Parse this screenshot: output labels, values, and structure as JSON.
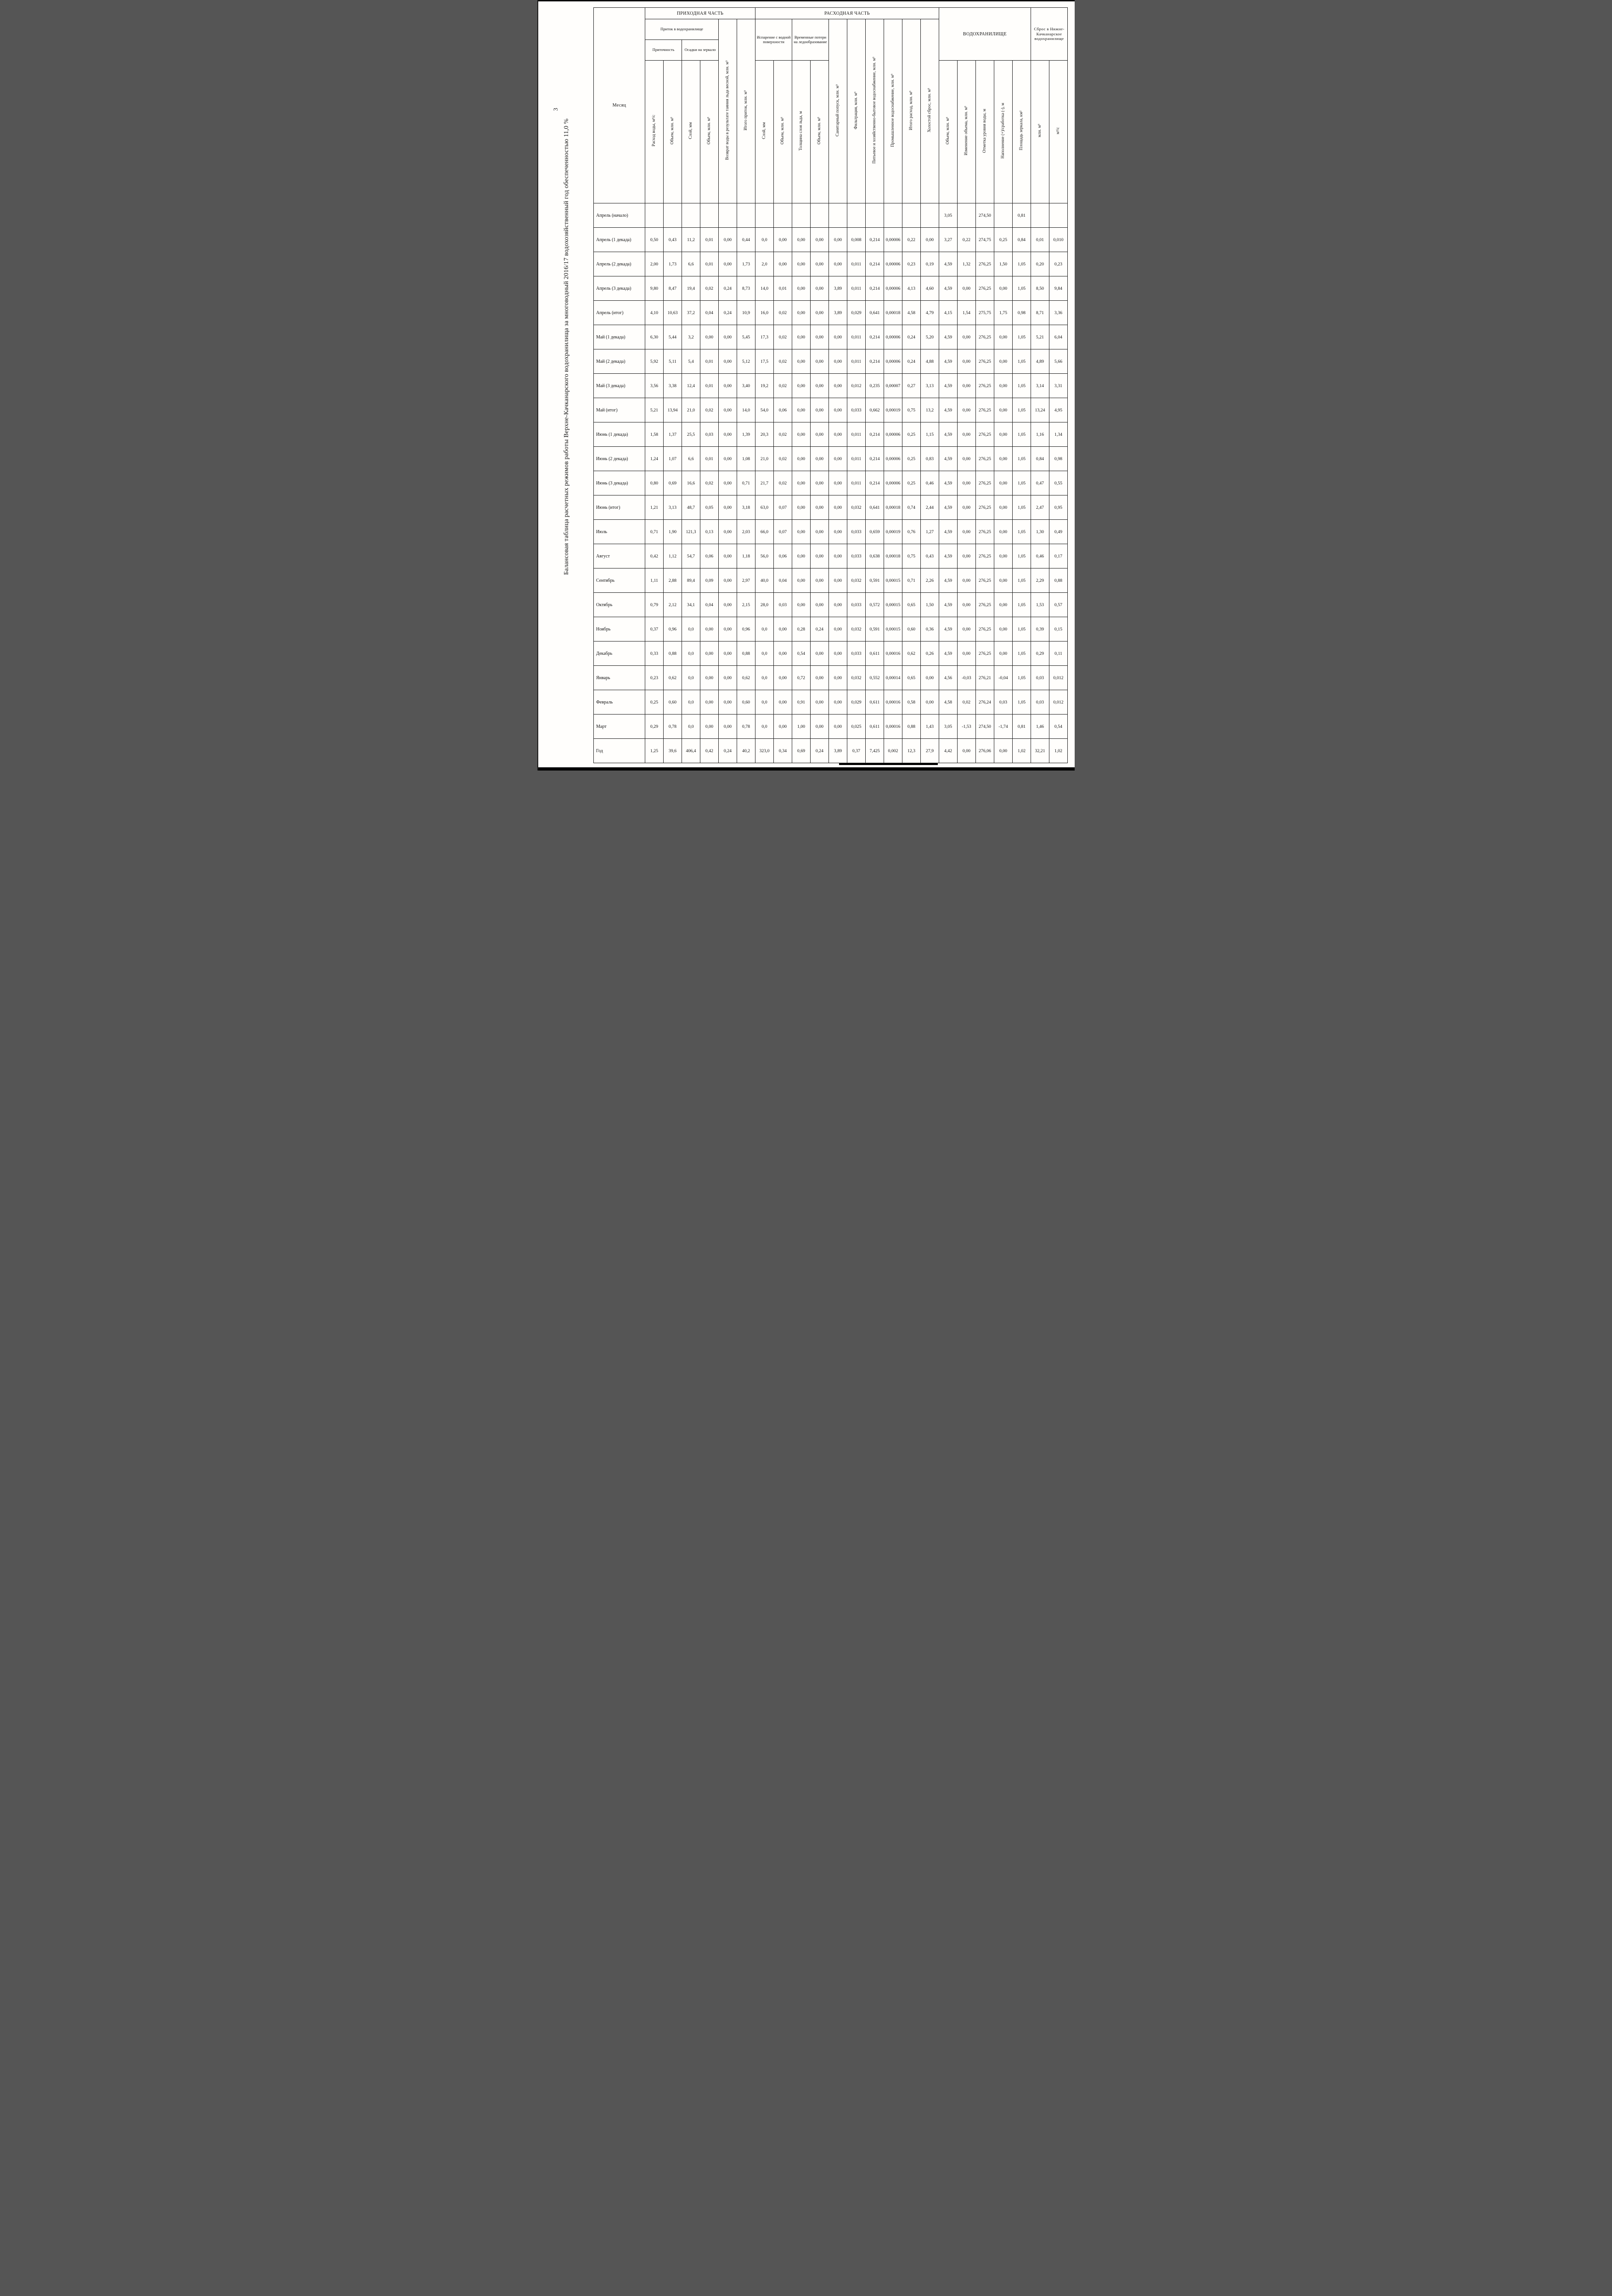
{
  "page": {
    "number": "3",
    "title": "Балансовая таблица расчетных режимов работы Верхне-Качканарского водохранилища за многоводный 2016/17 водохозяйственный год обеспеченностью 11,0 %"
  },
  "table": {
    "month_col_header": "Месяц",
    "groups": {
      "prihod": "ПРИХОДНАЯ ЧАСТЬ",
      "rashod": "РАСХОДНАЯ ЧАСТЬ",
      "vdhr": "ВОДОХРАНИЛИЩЕ",
      "sbros": "Сброс в Нижне-Качканарское водохранилище",
      "pritok_v": "Приток в водохранилище",
      "pritochnost": "Приточность",
      "osadki": "Осадки на зеркало",
      "isparenie": "Испарение с водной поверхности",
      "led": "Временные потери на ледообразование"
    },
    "leaf_headers": {
      "prit_rashod": "Расход воды, м³/с",
      "prit_obem": "Объем, млн. м³",
      "osadki_sloy": "Слой, мм",
      "osadki_obem": "Объем, млн. м³",
      "vozvrat": "Возврат воды в результате таяния льда весной, млн. м³",
      "itogo_pritok": "Итого приток, млн. м³",
      "isp_sloy": "Слой, мм",
      "isp_obem": "Объем, млн. м³",
      "led_tolsch": "Толщина слоя льда, м",
      "led_obem": "Объем, млн. м³",
      "sanitarny": "Санитарный попуск, млн. м³",
      "filtracia": "Фильтрация, млн. м³",
      "pitevoe": "Питьевое и хозяйственно-бытовое водоснабжение, млн. м³",
      "prom": "Промышленное водоснабжение, млн. м³",
      "itogo_rashod": "Итого расход, млн. м³",
      "kholostoy": "Холостой сброс, млн. м³",
      "obem_vdhr": "Объем, млн. м³",
      "izmenenie": "Изменение объема, млн. м³",
      "otmetka": "Отметка уровня воды, м",
      "napolnenie": "Наполнение (+)/сработка (-), м",
      "ploschad": "Площадь зеркала, км²",
      "sbros_mln": "млн. м³",
      "sbros_m3s": "м³/с"
    },
    "months": [
      "Апрель (начало)",
      "Апрель (1 декада)",
      "Апрель (2 декада)",
      "Апрель (3 декада)",
      "Апрель (итог)",
      "Май (1 декада)",
      "Май (2 декада)",
      "Май (3 декада)",
      "Май (итог)",
      "Июнь (1 декада)",
      "Июнь (2 декада)",
      "Июнь (3 декада)",
      "Июнь (итог)",
      "Июль",
      "Август",
      "Сентябрь",
      "Октябрь",
      "Ноябрь",
      "Декабрь",
      "Январь",
      "Февраль",
      "Март",
      "Год"
    ],
    "rows": [
      [
        "",
        "",
        "",
        "",
        "",
        "",
        "",
        "",
        "",
        "",
        "",
        "",
        "",
        "",
        "",
        "",
        "3,05",
        "",
        "274,50",
        "",
        "0,81",
        "",
        ""
      ],
      [
        "0,50",
        "0,43",
        "11,2",
        "0,01",
        "0,00",
        "0,44",
        "0,0",
        "0,00",
        "0,00",
        "0,00",
        "0,00",
        "0,008",
        "0,214",
        "0,00006",
        "0,22",
        "0,00",
        "3,27",
        "0,22",
        "274,75",
        "0,25",
        "0,84",
        "0,01",
        "0,010"
      ],
      [
        "2,00",
        "1,73",
        "6,6",
        "0,01",
        "0,00",
        "1,73",
        "2,0",
        "0,00",
        "0,00",
        "0,00",
        "0,00",
        "0,011",
        "0,214",
        "0,00006",
        "0,23",
        "0,19",
        "4,59",
        "1,32",
        "276,25",
        "1,50",
        "1,05",
        "0,20",
        "0,23"
      ],
      [
        "9,80",
        "8,47",
        "19,4",
        "0,02",
        "0,24",
        "8,73",
        "14,0",
        "0,01",
        "0,00",
        "0,00",
        "3,89",
        "0,011",
        "0,214",
        "0,00006",
        "4,13",
        "4,60",
        "4,59",
        "0,00",
        "276,25",
        "0,00",
        "1,05",
        "8,50",
        "9,84"
      ],
      [
        "4,10",
        "10,63",
        "37,2",
        "0,04",
        "0,24",
        "10,9",
        "16,0",
        "0,02",
        "0,00",
        "0,00",
        "3,89",
        "0,029",
        "0,641",
        "0,00018",
        "4,58",
        "4,79",
        "4,15",
        "1,54",
        "275,75",
        "1,75",
        "0,98",
        "8,71",
        "3,36"
      ],
      [
        "6,30",
        "5,44",
        "3,2",
        "0,00",
        "0,00",
        "5,45",
        "17,3",
        "0,02",
        "0,00",
        "0,00",
        "0,00",
        "0,011",
        "0,214",
        "0,00006",
        "0,24",
        "5,20",
        "4,59",
        "0,00",
        "276,25",
        "0,00",
        "1,05",
        "5,21",
        "6,04"
      ],
      [
        "5,92",
        "5,11",
        "5,4",
        "0,01",
        "0,00",
        "5,12",
        "17,5",
        "0,02",
        "0,00",
        "0,00",
        "0,00",
        "0,011",
        "0,214",
        "0,00006",
        "0,24",
        "4,88",
        "4,59",
        "0,00",
        "276,25",
        "0,00",
        "1,05",
        "4,89",
        "5,66"
      ],
      [
        "3,56",
        "3,38",
        "12,4",
        "0,01",
        "0,00",
        "3,40",
        "19,2",
        "0,02",
        "0,00",
        "0,00",
        "0,00",
        "0,012",
        "0,235",
        "0,00007",
        "0,27",
        "3,13",
        "4,59",
        "0,00",
        "276,25",
        "0,00",
        "1,05",
        "3,14",
        "3,31"
      ],
      [
        "5,21",
        "13,94",
        "21,0",
        "0,02",
        "0,00",
        "14,0",
        "54,0",
        "0,06",
        "0,00",
        "0,00",
        "0,00",
        "0,033",
        "0,662",
        "0,00019",
        "0,75",
        "13,2",
        "4,59",
        "0,00",
        "276,25",
        "0,00",
        "1,05",
        "13,24",
        "4,95"
      ],
      [
        "1,58",
        "1,37",
        "25,5",
        "0,03",
        "0,00",
        "1,39",
        "20,3",
        "0,02",
        "0,00",
        "0,00",
        "0,00",
        "0,011",
        "0,214",
        "0,00006",
        "0,25",
        "1,15",
        "4,59",
        "0,00",
        "276,25",
        "0,00",
        "1,05",
        "1,16",
        "1,34"
      ],
      [
        "1,24",
        "1,07",
        "6,6",
        "0,01",
        "0,00",
        "1,08",
        "21,0",
        "0,02",
        "0,00",
        "0,00",
        "0,00",
        "0,011",
        "0,214",
        "0,00006",
        "0,25",
        "0,83",
        "4,59",
        "0,00",
        "276,25",
        "0,00",
        "1,05",
        "0,84",
        "0,98"
      ],
      [
        "0,80",
        "0,69",
        "16,6",
        "0,02",
        "0,00",
        "0,71",
        "21,7",
        "0,02",
        "0,00",
        "0,00",
        "0,00",
        "0,011",
        "0,214",
        "0,00006",
        "0,25",
        "0,46",
        "4,59",
        "0,00",
        "276,25",
        "0,00",
        "1,05",
        "0,47",
        "0,55"
      ],
      [
        "1,21",
        "3,13",
        "48,7",
        "0,05",
        "0,00",
        "3,18",
        "63,0",
        "0,07",
        "0,00",
        "0,00",
        "0,00",
        "0,032",
        "0,641",
        "0,00018",
        "0,74",
        "2,44",
        "4,59",
        "0,00",
        "276,25",
        "0,00",
        "1,05",
        "2,47",
        "0,95"
      ],
      [
        "0,71",
        "1,90",
        "121,3",
        "0,13",
        "0,00",
        "2,03",
        "66,0",
        "0,07",
        "0,00",
        "0,00",
        "0,00",
        "0,033",
        "0,659",
        "0,00019",
        "0,76",
        "1,27",
        "4,59",
        "0,00",
        "276,25",
        "0,00",
        "1,05",
        "1,30",
        "0,49"
      ],
      [
        "0,42",
        "1,12",
        "54,7",
        "0,06",
        "0,00",
        "1,18",
        "56,0",
        "0,06",
        "0,00",
        "0,00",
        "0,00",
        "0,033",
        "0,638",
        "0,00018",
        "0,75",
        "0,43",
        "4,59",
        "0,00",
        "276,25",
        "0,00",
        "1,05",
        "0,46",
        "0,17"
      ],
      [
        "1,11",
        "2,88",
        "89,4",
        "0,09",
        "0,00",
        "2,97",
        "40,0",
        "0,04",
        "0,00",
        "0,00",
        "0,00",
        "0,032",
        "0,591",
        "0,00015",
        "0,71",
        "2,26",
        "4,59",
        "0,00",
        "276,25",
        "0,00",
        "1,05",
        "2,29",
        "0,88"
      ],
      [
        "0,79",
        "2,12",
        "34,1",
        "0,04",
        "0,00",
        "2,15",
        "28,0",
        "0,03",
        "0,00",
        "0,00",
        "0,00",
        "0,033",
        "0,572",
        "0,00015",
        "0,65",
        "1,50",
        "4,59",
        "0,00",
        "276,25",
        "0,00",
        "1,05",
        "1,53",
        "0,57"
      ],
      [
        "0,37",
        "0,96",
        "0,0",
        "0,00",
        "0,00",
        "0,96",
        "0,0",
        "0,00",
        "0,28",
        "0,24",
        "0,00",
        "0,032",
        "0,591",
        "0,00015",
        "0,60",
        "0,36",
        "4,59",
        "0,00",
        "276,25",
        "0,00",
        "1,05",
        "0,39",
        "0,15"
      ],
      [
        "0,33",
        "0,88",
        "0,0",
        "0,00",
        "0,00",
        "0,88",
        "0,0",
        "0,00",
        "0,54",
        "0,00",
        "0,00",
        "0,033",
        "0,611",
        "0,00016",
        "0,62",
        "0,26",
        "4,59",
        "0,00",
        "276,25",
        "0,00",
        "1,05",
        "0,29",
        "0,11"
      ],
      [
        "0,23",
        "0,62",
        "0,0",
        "0,00",
        "0,00",
        "0,62",
        "0,0",
        "0,00",
        "0,72",
        "0,00",
        "0,00",
        "0,032",
        "0,552",
        "0,00014",
        "0,65",
        "0,00",
        "4,56",
        "-0,03",
        "276,21",
        "-0,04",
        "1,05",
        "0,03",
        "0,012"
      ],
      [
        "0,25",
        "0,60",
        "0,0",
        "0,00",
        "0,00",
        "0,60",
        "0,0",
        "0,00",
        "0,91",
        "0,00",
        "0,00",
        "0,029",
        "0,611",
        "0,00016",
        "0,58",
        "0,00",
        "4,58",
        "0,02",
        "276,24",
        "0,03",
        "1,05",
        "0,03",
        "0,012"
      ],
      [
        "0,29",
        "0,78",
        "0,0",
        "0,00",
        "0,00",
        "0,78",
        "0,0",
        "0,00",
        "1,00",
        "0,00",
        "0,00",
        "0,025",
        "0,611",
        "0,00016",
        "0,88",
        "1,43",
        "3,05",
        "-1,53",
        "274,50",
        "-1,74",
        "0,81",
        "1,46",
        "0,54"
      ],
      [
        "1,25",
        "39,6",
        "406,4",
        "0,42",
        "0,24",
        "40,2",
        "323,0",
        "0,34",
        "0,69",
        "0,24",
        "3,89",
        "0,37",
        "7,425",
        "0,002",
        "12,3",
        "27,9",
        "4,42",
        "0,00",
        "276,06",
        "0,00",
        "1,02",
        "32,21",
        "1,02"
      ]
    ]
  }
}
